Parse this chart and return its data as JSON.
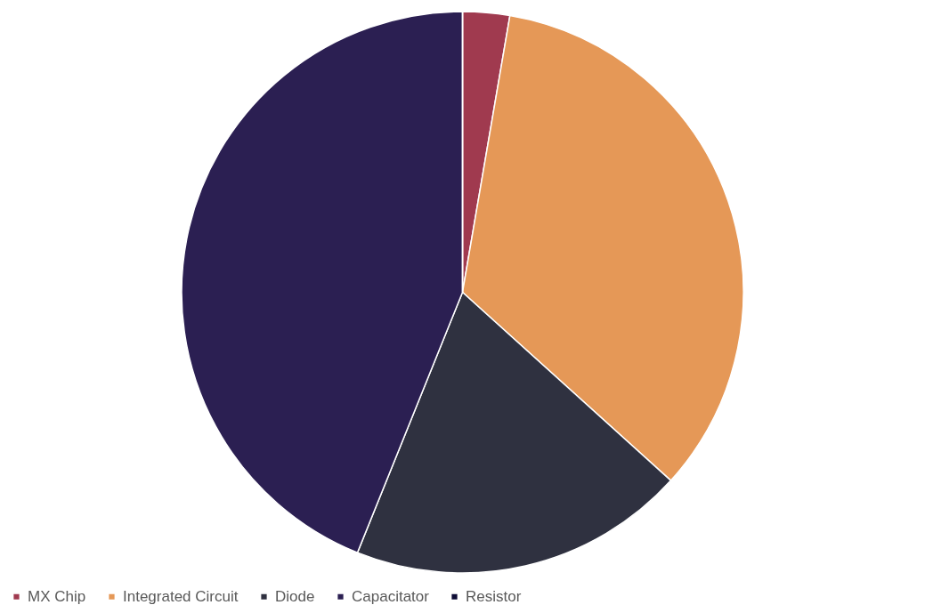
{
  "chart_data": {
    "type": "pie",
    "categories": [
      "MX Chip",
      "Integrated Circuit",
      "Diode",
      "Capacitator",
      "Resistor"
    ],
    "values": [
      2.7,
      34,
      19.4,
      43.9,
      0
    ],
    "colors": [
      "#a03a4f",
      "#e59857",
      "#2f3140",
      "#2b1f52",
      "#0d0c35"
    ],
    "legend": "bottom"
  }
}
